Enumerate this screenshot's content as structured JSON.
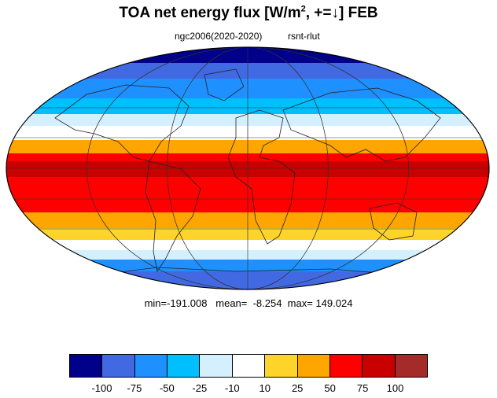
{
  "title": {
    "main": "TOA net energy flux  [W/m",
    "sup": "2",
    "suffix": ", +=↓] FEB"
  },
  "subtitle": {
    "left": "ngc2006(2020-2020)",
    "right": "rsnt-rlut"
  },
  "stats": {
    "text": "min=-191.008   mean=  -8.254  max= 149.024"
  },
  "colorbar": {
    "colors": [
      "#00008b",
      "#4169e1",
      "#1e90ff",
      "#00bfff",
      "#d4f0ff",
      "#ffffff",
      "#ffd42a",
      "#ffa500",
      "#ff0000",
      "#c80000",
      "#a52a2a"
    ],
    "labels": [
      "-100",
      "-75",
      "-50",
      "-25",
      "-10",
      "10",
      "25",
      "50",
      "75",
      "100"
    ]
  },
  "map": {
    "projection": "mollweide",
    "ocean_land_field": "rsnt-rlut"
  }
}
